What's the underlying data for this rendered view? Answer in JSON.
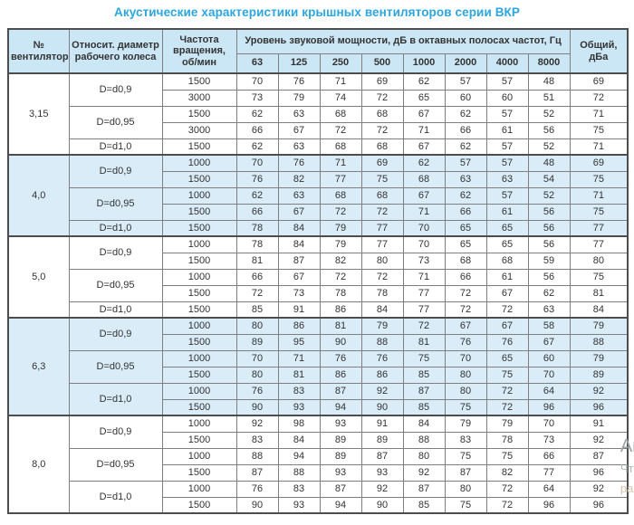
{
  "page": {
    "title": "Акустические характеристики крышных вентиляторов серии ВКР"
  },
  "colors": {
    "title_text": "#2BA6DF",
    "header_bg": "#CBE7F6",
    "alt_section_bg": "#D9ECF8",
    "border_dark": "#4D4D4D",
    "border_light": "#7F7F7F",
    "cell_text": "#333333"
  },
  "watermark": {
    "fragments": [
      "Ак",
      "Чт",
      "ра"
    ]
  },
  "table": {
    "header": {
      "fan_no": "№ вентилятора",
      "diameter": "Относит. диаметр рабочего колеса",
      "rpm": "Частота вращения, об/мин",
      "spl_group": "Уровень звуковой мощности, дБ в октавных полосах частот, Гц",
      "frequencies": [
        "63",
        "125",
        "250",
        "500",
        "1000",
        "2000",
        "4000",
        "8000"
      ],
      "total": "Общий, дБа"
    }
  },
  "chart_data": {
    "type": "table",
    "title": "Акустические характеристики крышных вентиляторов серии ВКР",
    "octave_bands_hz": [
      63,
      125,
      250,
      500,
      1000,
      2000,
      4000,
      8000
    ],
    "sections": [
      {
        "fan": "3,15",
        "groups": [
          {
            "diameter": "D=d0,9",
            "rows": [
              {
                "rpm": "1500",
                "values": [
                  70,
                  76,
                  71,
                  69,
                  62,
                  57,
                  57,
                  48
                ],
                "total": 69
              },
              {
                "rpm": "3000",
                "values": [
                  73,
                  79,
                  74,
                  72,
                  65,
                  60,
                  60,
                  51
                ],
                "total": 72
              }
            ]
          },
          {
            "diameter": "D=d0,95",
            "rows": [
              {
                "rpm": "1500",
                "values": [
                  62,
                  63,
                  68,
                  68,
                  67,
                  62,
                  57,
                  52
                ],
                "total": 71
              },
              {
                "rpm": "3000",
                "values": [
                  66,
                  67,
                  72,
                  72,
                  71,
                  66,
                  61,
                  56
                ],
                "total": 75
              }
            ]
          },
          {
            "diameter": "D=d1,0",
            "rows": [
              {
                "rpm": "1500",
                "values": [
                  62,
                  63,
                  68,
                  68,
                  67,
                  62,
                  57,
                  52
                ],
                "total": 71
              }
            ]
          }
        ]
      },
      {
        "fan": "4,0",
        "groups": [
          {
            "diameter": "D=d0,9",
            "rows": [
              {
                "rpm": "1000",
                "values": [
                  70,
                  76,
                  71,
                  69,
                  62,
                  57,
                  57,
                  48
                ],
                "total": 69
              },
              {
                "rpm": "1500",
                "values": [
                  76,
                  82,
                  77,
                  75,
                  68,
                  63,
                  63,
                  54
                ],
                "total": 75
              }
            ]
          },
          {
            "diameter": "D=d0,95",
            "rows": [
              {
                "rpm": "1000",
                "values": [
                  62,
                  63,
                  68,
                  68,
                  67,
                  62,
                  57,
                  52
                ],
                "total": 71
              },
              {
                "rpm": "1500",
                "values": [
                  66,
                  67,
                  72,
                  72,
                  71,
                  66,
                  61,
                  56
                ],
                "total": 75
              }
            ]
          },
          {
            "diameter": "D=d1,0",
            "rows": [
              {
                "rpm": "1500",
                "values": [
                  78,
                  84,
                  79,
                  77,
                  70,
                  65,
                  65,
                  56
                ],
                "total": 77
              }
            ]
          }
        ]
      },
      {
        "fan": "5,0",
        "groups": [
          {
            "diameter": "D=d0,9",
            "rows": [
              {
                "rpm": "1000",
                "values": [
                  78,
                  84,
                  79,
                  77,
                  70,
                  65,
                  65,
                  56
                ],
                "total": 77
              },
              {
                "rpm": "1500",
                "values": [
                  81,
                  87,
                  82,
                  80,
                  73,
                  68,
                  68,
                  59
                ],
                "total": 80
              }
            ]
          },
          {
            "diameter": "D=d0,95",
            "rows": [
              {
                "rpm": "1000",
                "values": [
                  66,
                  67,
                  72,
                  72,
                  71,
                  66,
                  61,
                  56
                ],
                "total": 75
              },
              {
                "rpm": "1500",
                "values": [
                  72,
                  73,
                  78,
                  78,
                  77,
                  72,
                  67,
                  62
                ],
                "total": 81
              }
            ]
          },
          {
            "diameter": "D=d1,0",
            "rows": [
              {
                "rpm": "1500",
                "values": [
                  85,
                  91,
                  86,
                  84,
                  77,
                  72,
                  72,
                  63
                ],
                "total": 84
              }
            ]
          }
        ]
      },
      {
        "fan": "6,3",
        "groups": [
          {
            "diameter": "D=d0,9",
            "rows": [
              {
                "rpm": "1000",
                "values": [
                  80,
                  86,
                  81,
                  79,
                  72,
                  67,
                  67,
                  58
                ],
                "total": 79
              },
              {
                "rpm": "1500",
                "values": [
                  89,
                  95,
                  90,
                  88,
                  81,
                  76,
                  76,
                  67
                ],
                "total": 88
              }
            ]
          },
          {
            "diameter": "D=d0,95",
            "rows": [
              {
                "rpm": "1000",
                "values": [
                  70,
                  71,
                  76,
                  76,
                  75,
                  70,
                  65,
                  60
                ],
                "total": 79
              },
              {
                "rpm": "1500",
                "values": [
                  80,
                  81,
                  86,
                  86,
                  85,
                  80,
                  75,
                  70
                ],
                "total": 89
              }
            ]
          },
          {
            "diameter": "D=d1,0",
            "rows": [
              {
                "rpm": "1000",
                "values": [
                  76,
                  83,
                  87,
                  92,
                  87,
                  80,
                  72,
                  64
                ],
                "total": 92
              },
              {
                "rpm": "1500",
                "values": [
                  90,
                  93,
                  94,
                  90,
                  85,
                  75,
                  72,
                  96
                ],
                "total": 96
              }
            ]
          }
        ]
      },
      {
        "fan": "8,0",
        "groups": [
          {
            "diameter": "D=d0,9",
            "rows": [
              {
                "rpm": "1000",
                "values": [
                  92,
                  98,
                  93,
                  91,
                  84,
                  79,
                  79,
                  70
                ],
                "total": 91
              },
              {
                "rpm": "1500",
                "values": [
                  83,
                  84,
                  89,
                  89,
                  88,
                  83,
                  78,
                  73
                ],
                "total": 92
              }
            ]
          },
          {
            "diameter": "D=d0,95",
            "rows": [
              {
                "rpm": "1000",
                "values": [
                  88,
                  94,
                  89,
                  87,
                  80,
                  75,
                  75,
                  66
                ],
                "total": 87
              },
              {
                "rpm": "1500",
                "values": [
                  87,
                  88,
                  93,
                  93,
                  92,
                  87,
                  82,
                  77
                ],
                "total": 96
              }
            ]
          },
          {
            "diameter": "D=d1,0",
            "rows": [
              {
                "rpm": "1000",
                "values": [
                  76,
                  83,
                  87,
                  92,
                  87,
                  80,
                  72,
                  64
                ],
                "total": 92
              },
              {
                "rpm": "1500",
                "values": [
                  90,
                  93,
                  94,
                  90,
                  85,
                  75,
                  72,
                  96
                ],
                "total": 96
              }
            ]
          }
        ]
      }
    ]
  }
}
